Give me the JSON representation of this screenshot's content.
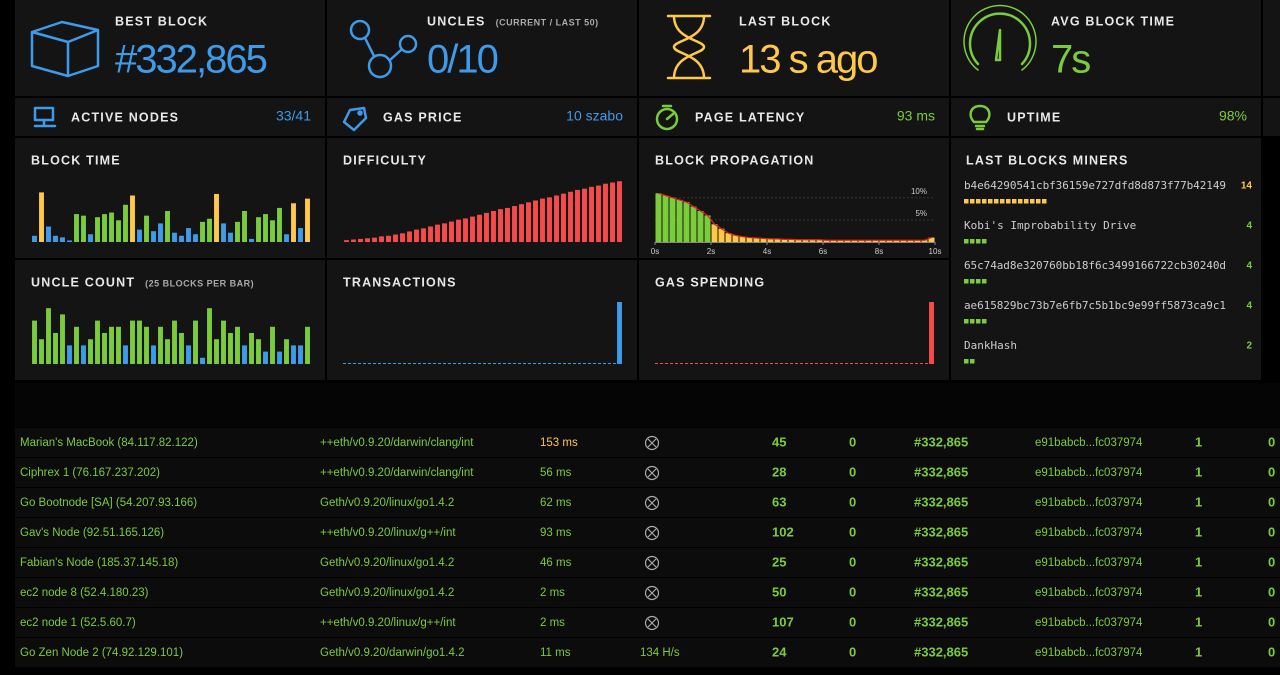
{
  "stats": [
    {
      "label": "BEST BLOCK",
      "value": "#332,865",
      "color": "#3d9be9"
    },
    {
      "label": "UNCLES",
      "sublabel": "(CURRENT / LAST 50)",
      "value": "0/10",
      "color": "#3d9be9"
    },
    {
      "label": "LAST BLOCK",
      "value": "13 s ago",
      "color": "#ffc848"
    },
    {
      "label": "AVG BLOCK TIME",
      "value": "7s",
      "color": "#7bcc3a"
    }
  ],
  "small_stats": [
    {
      "label": "ACTIVE NODES",
      "value": "33/41",
      "color": "#3d9be9"
    },
    {
      "label": "GAS PRICE",
      "value": "10 szabo",
      "color": "#3d9be9"
    },
    {
      "label": "PAGE LATENCY",
      "value": "93 ms",
      "color": "#7bcc3a"
    },
    {
      "label": "UPTIME",
      "value": "98%",
      "color": "#7bcc3a"
    }
  ],
  "charts": [
    {
      "type": "bar",
      "title": "BLOCK TIME",
      "ylim": [
        0,
        40
      ],
      "colors": [
        "#3d9be9",
        "#7bcc3a",
        "#ffc848"
      ],
      "values": [
        4,
        32,
        10,
        4,
        3,
        1,
        18,
        17,
        5,
        16,
        18,
        19,
        14,
        24,
        30,
        8,
        17,
        7,
        12,
        20,
        6,
        4,
        9,
        5,
        13,
        15,
        31,
        12,
        6,
        13,
        20,
        2,
        16,
        18,
        14,
        22,
        5,
        25,
        9,
        28
      ]
    },
    {
      "type": "bar",
      "title": "DIFFICULTY",
      "ylim": [
        0,
        100
      ],
      "colors": [
        "#f74b4b"
      ],
      "values": [
        3,
        4,
        5,
        6,
        7,
        9,
        10,
        12,
        14,
        17,
        20,
        22,
        25,
        28,
        30,
        33,
        36,
        38,
        41,
        44,
        47,
        50,
        53,
        55,
        58,
        61,
        64,
        67,
        70,
        72,
        75,
        78,
        81,
        84,
        86,
        89,
        91,
        94,
        96,
        98
      ]
    },
    {
      "type": "histogram",
      "title": "BLOCK PROPAGATION",
      "ylim": [
        0,
        14
      ],
      "xlim": [
        0,
        10
      ],
      "colors": [
        "#ffc848",
        "#7bcc3a"
      ],
      "line_color": "#e02020",
      "bins": [
        0,
        0.25,
        0.5,
        0.75,
        1,
        1.25,
        1.5,
        1.75,
        2,
        2.25,
        2.5,
        2.75,
        3,
        3.25,
        3.5,
        3.75,
        4,
        4.25,
        4.5,
        4.75,
        5,
        5.25,
        5.5,
        5.75,
        6,
        6.25,
        6.5,
        6.75,
        7,
        7.25,
        7.5,
        7.75,
        8,
        8.25,
        8.5,
        8.75,
        9,
        9.25,
        9.5,
        9.75,
        10
      ],
      "values": [
        11,
        10.5,
        10,
        9.5,
        9,
        8,
        7,
        6,
        4,
        3,
        2,
        1.5,
        1.2,
        1,
        0.9,
        0.8,
        0.7,
        0.7,
        0.6,
        0.6,
        0.5,
        0.5,
        0.5,
        0.5,
        0.4,
        0.4,
        0.4,
        0.4,
        0.4,
        0.4,
        0.4,
        0.4,
        0.4,
        0.4,
        0.4,
        0.4,
        0.4,
        0.4,
        0.4,
        1
      ],
      "xticks": [
        {
          "value": 0,
          "label": "0s"
        },
        {
          "value": 2,
          "label": "2s"
        },
        {
          "value": 4,
          "label": "4s"
        },
        {
          "value": 6,
          "label": "6s"
        },
        {
          "value": 8,
          "label": "8s"
        },
        {
          "value": 10,
          "label": "10s"
        }
      ],
      "yticks": [
        {
          "value": 5,
          "label": "5%"
        },
        {
          "value": 10,
          "label": "10%"
        }
      ]
    },
    {
      "type": "bar",
      "title": "UNCLE COUNT",
      "subtitle": "(25 BLOCKS PER BAR)",
      "ylim": [
        0,
        10
      ],
      "colors": [
        "#3d9be9",
        "#7bcc3a"
      ],
      "values": [
        7,
        4,
        9,
        5,
        8,
        3,
        6,
        3,
        4,
        7,
        5,
        6,
        6,
        3,
        7,
        7,
        6,
        3,
        6,
        4,
        7,
        5,
        3,
        7,
        1,
        9,
        4,
        7,
        5,
        6,
        3,
        5,
        4,
        2,
        6,
        2,
        4,
        3,
        3,
        6
      ]
    },
    {
      "type": "bar",
      "title": "TRANSACTIONS",
      "ylim": [
        0,
        100
      ],
      "colors": [
        "#3d9be9"
      ],
      "values": [
        0,
        0,
        0,
        0,
        0,
        0,
        0,
        0,
        0,
        0,
        0,
        0,
        0,
        0,
        0,
        0,
        0,
        0,
        0,
        0,
        0,
        0,
        0,
        0,
        0,
        0,
        0,
        0,
        0,
        0,
        0,
        0,
        0,
        0,
        0,
        0,
        0,
        0,
        0,
        100
      ]
    },
    {
      "type": "bar",
      "title": "GAS SPENDING",
      "ylim": [
        0,
        100
      ],
      "colors": [
        "#f74b4b"
      ],
      "values": [
        0,
        0,
        0,
        0,
        0,
        0,
        0,
        0,
        0,
        0,
        0,
        0,
        0,
        0,
        0,
        0,
        0,
        0,
        0,
        0,
        0,
        0,
        0,
        0,
        0,
        0,
        0,
        0,
        0,
        0,
        0,
        0,
        0,
        0,
        0,
        0,
        0,
        0,
        0,
        100
      ]
    }
  ],
  "miners": {
    "title": "LAST BLOCKS MINERS",
    "rows": [
      {
        "name": "b4e64290541cbf36159e727dfd8d873f77b42149",
        "count": 14,
        "color": "#ffc848"
      },
      {
        "name": "Kobi's Improbability Drive",
        "count": 4,
        "color": "#7bcc3a"
      },
      {
        "name": "65c74ad8e320760bb18f6c3499166722cb30240d",
        "count": 4,
        "color": "#7bcc3a"
      },
      {
        "name": "ae615829bc73b7e6fb7c5b1bc9e99ff5873ca9c1",
        "count": 4,
        "color": "#7bcc3a"
      },
      {
        "name": "DankHash",
        "count": 2,
        "color": "#7bcc3a"
      }
    ]
  },
  "table": {
    "color": "#7bcc3a",
    "rows": [
      {
        "cells": [
          "Marian's MacBook (84.117.82.122)",
          "++eth/v0.9.20/darwin/clang/int",
          "153 ms",
          null,
          "45",
          "0",
          "#332,865",
          "e91babcb...fc037974",
          "1",
          "0"
        ],
        "latency_color": "#ffc848"
      },
      {
        "cells": [
          "Ciphrex 1 (76.167.237.202)",
          "++eth/v0.9.20/darwin/clang/int",
          "56 ms",
          null,
          "28",
          "0",
          "#332,865",
          "e91babcb...fc037974",
          "1",
          "0"
        ]
      },
      {
        "cells": [
          "Go Bootnode [SA] (54.207.93.166)",
          "Geth/v0.9.20/linux/go1.4.2",
          "62 ms",
          null,
          "63",
          "0",
          "#332,865",
          "e91babcb...fc037974",
          "1",
          "0"
        ]
      },
      {
        "cells": [
          "Gav's Node (92.51.165.126)",
          "++eth/v0.9.20/linux/g++/int",
          "93 ms",
          null,
          "102",
          "0",
          "#332,865",
          "e91babcb...fc037974",
          "1",
          "0"
        ]
      },
      {
        "cells": [
          "Fabian's Node (185.37.145.18)",
          "Geth/v0.9.20/linux/go1.4.2",
          "46 ms",
          null,
          "25",
          "0",
          "#332,865",
          "e91babcb...fc037974",
          "1",
          "0"
        ]
      },
      {
        "cells": [
          "ec2 node 8 (52.4.180.23)",
          "Geth/v0.9.20/linux/go1.4.2",
          "2 ms",
          null,
          "50",
          "0",
          "#332,865",
          "e91babcb...fc037974",
          "1",
          "0"
        ]
      },
      {
        "cells": [
          "ec2 node 1 (52.5.60.7)",
          "++eth/v0.9.20/linux/g++/int",
          "2 ms",
          null,
          "107",
          "0",
          "#332,865",
          "e91babcb...fc037974",
          "1",
          "0"
        ]
      },
      {
        "cells": [
          "Go Zen Node 2 (74.92.129.101)",
          "Geth/v0.9.20/darwin/go1.4.2",
          "11 ms",
          "134 H/s",
          "24",
          "0",
          "#332,865",
          "e91babcb...fc037974",
          "1",
          "0"
        ]
      }
    ]
  }
}
